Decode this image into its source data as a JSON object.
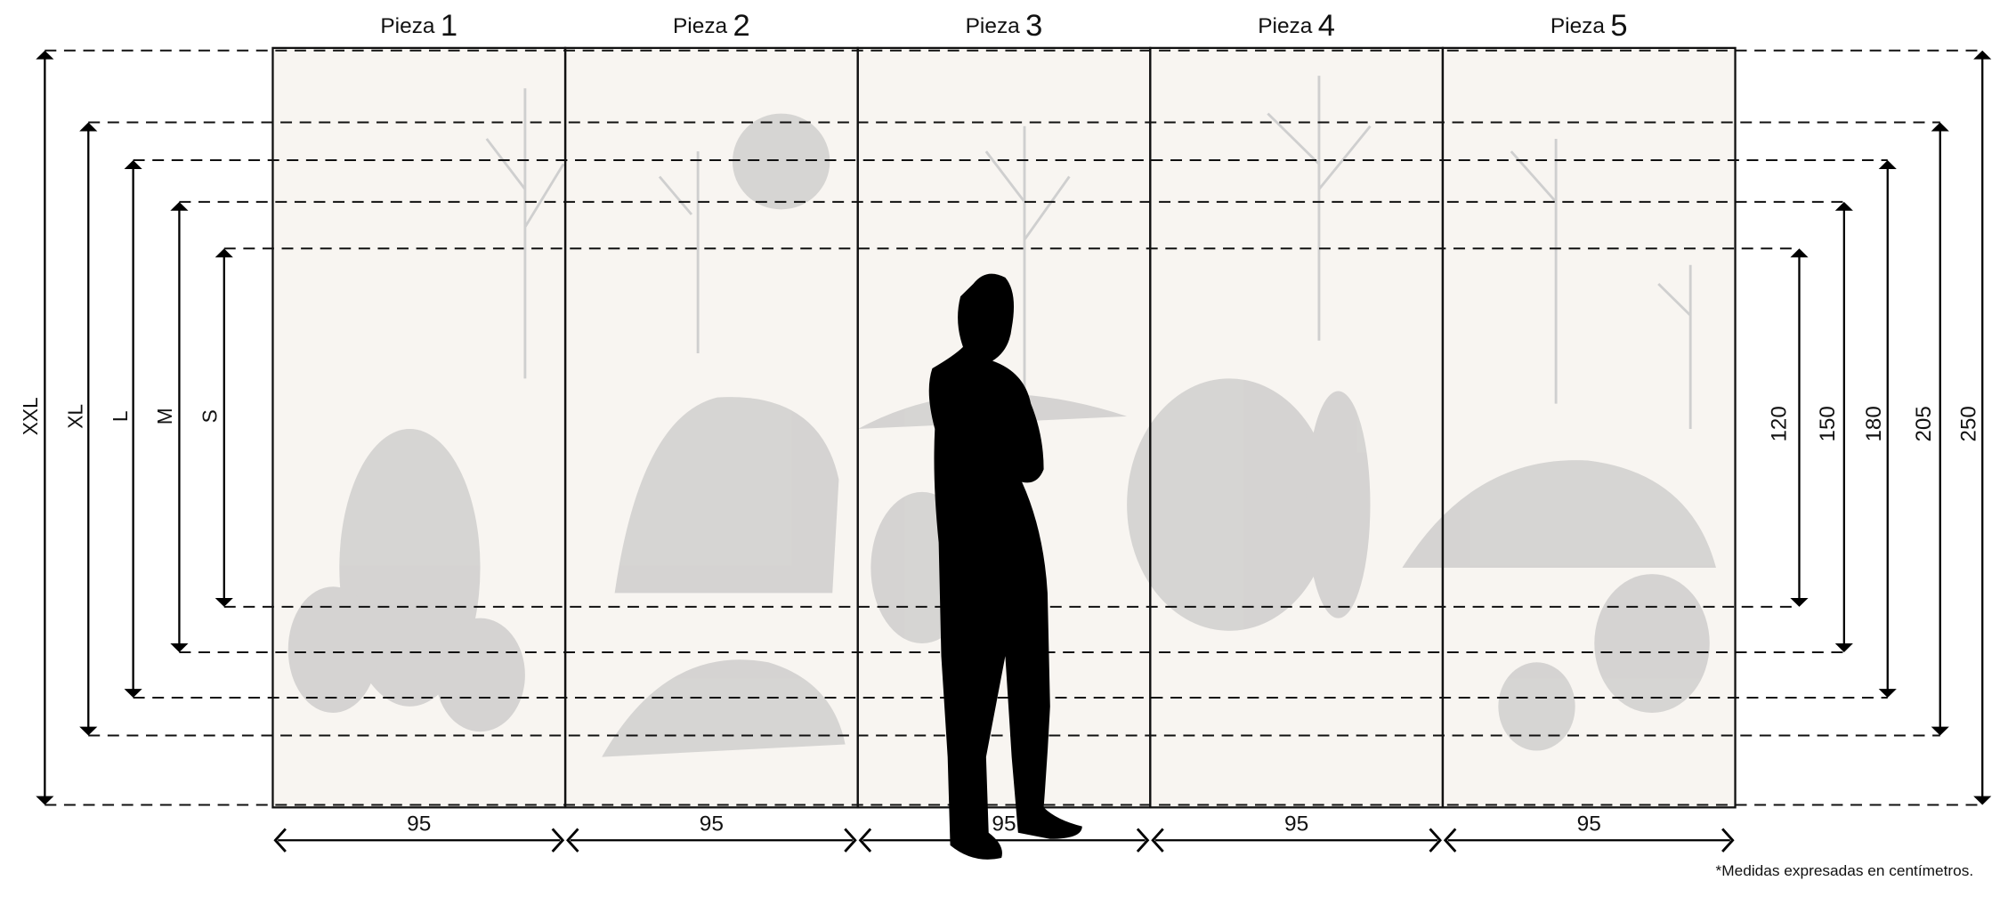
{
  "pieces": [
    {
      "label": "Pieza",
      "number": "1"
    },
    {
      "label": "Pieza",
      "number": "2"
    },
    {
      "label": "Pieza",
      "number": "3"
    },
    {
      "label": "Pieza",
      "number": "4"
    },
    {
      "label": "Pieza",
      "number": "5"
    }
  ],
  "piece_widths": [
    "95",
    "95",
    "95",
    "95",
    "95"
  ],
  "sizes": [
    {
      "name": "XXL",
      "height": "250"
    },
    {
      "name": "XL",
      "height": "205"
    },
    {
      "name": "L",
      "height": "180"
    },
    {
      "name": "M",
      "height": "150"
    },
    {
      "name": "S",
      "height": "120"
    }
  ],
  "note": "*Medidas expresadas en centímetros."
}
